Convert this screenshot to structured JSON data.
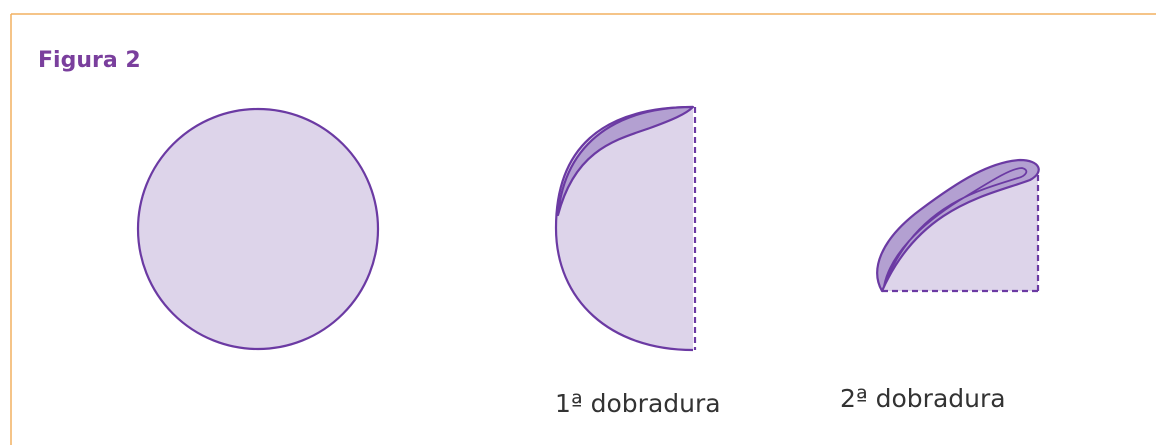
{
  "title": "Figura 2",
  "labels": [
    "1ª dobradura",
    "2ª dobradura"
  ]
}
